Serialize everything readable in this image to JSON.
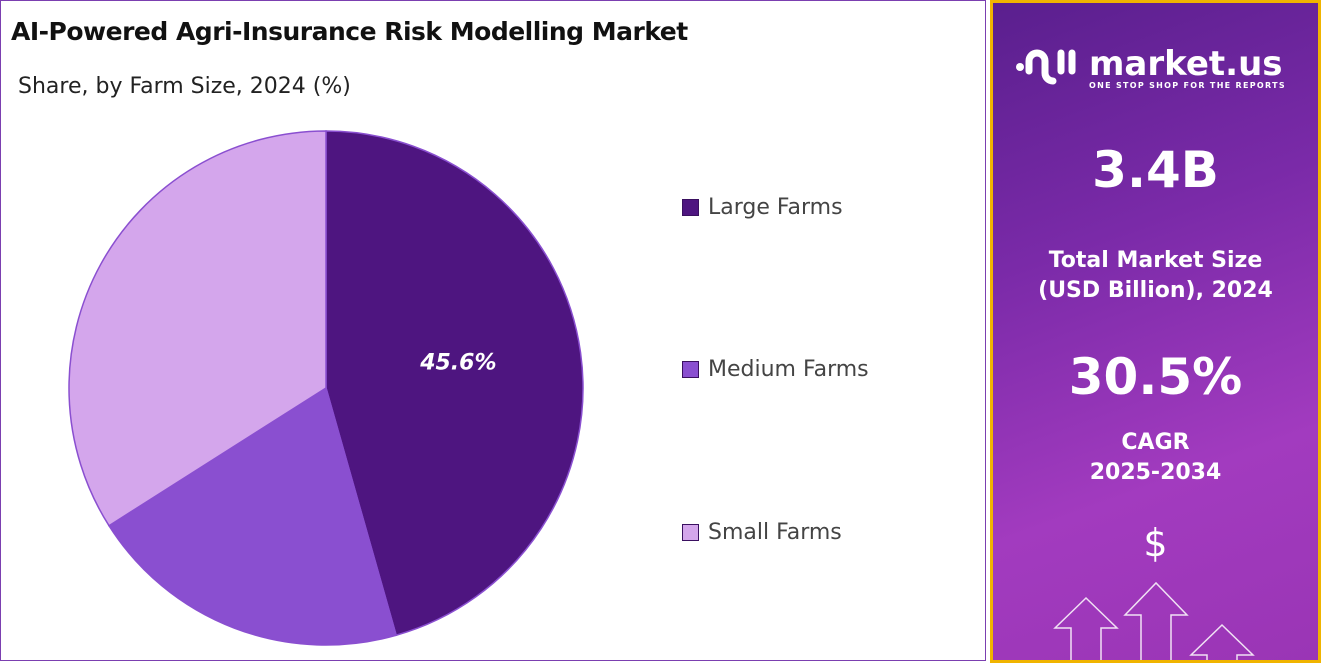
{
  "chart_data": {
    "type": "pie",
    "title": "AI-Powered Agri-Insurance Risk Modelling Market",
    "subtitle": "Share, by Farm Size, 2024 (%)",
    "categories": [
      "Large Farms",
      "Medium Farms",
      "Small Farms"
    ],
    "values": [
      45.6,
      20.4,
      34.0
    ],
    "colors": [
      "#4e1580",
      "#8a4fd0",
      "#d4a6ec"
    ],
    "data_labels": [
      "45.6%",
      "",
      ""
    ],
    "legend_position": "right"
  },
  "panel": {
    "brand": "market.us",
    "tagline": "ONE STOP SHOP FOR THE REPORTS",
    "market_size": "3.4B",
    "market_size_label_1": "Total Market Size",
    "market_size_label_2": "(USD Billion), 2024",
    "cagr": "30.5%",
    "cagr_label_1": "CAGR",
    "cagr_label_2": "2025-2034",
    "dollar_symbol": "$"
  }
}
